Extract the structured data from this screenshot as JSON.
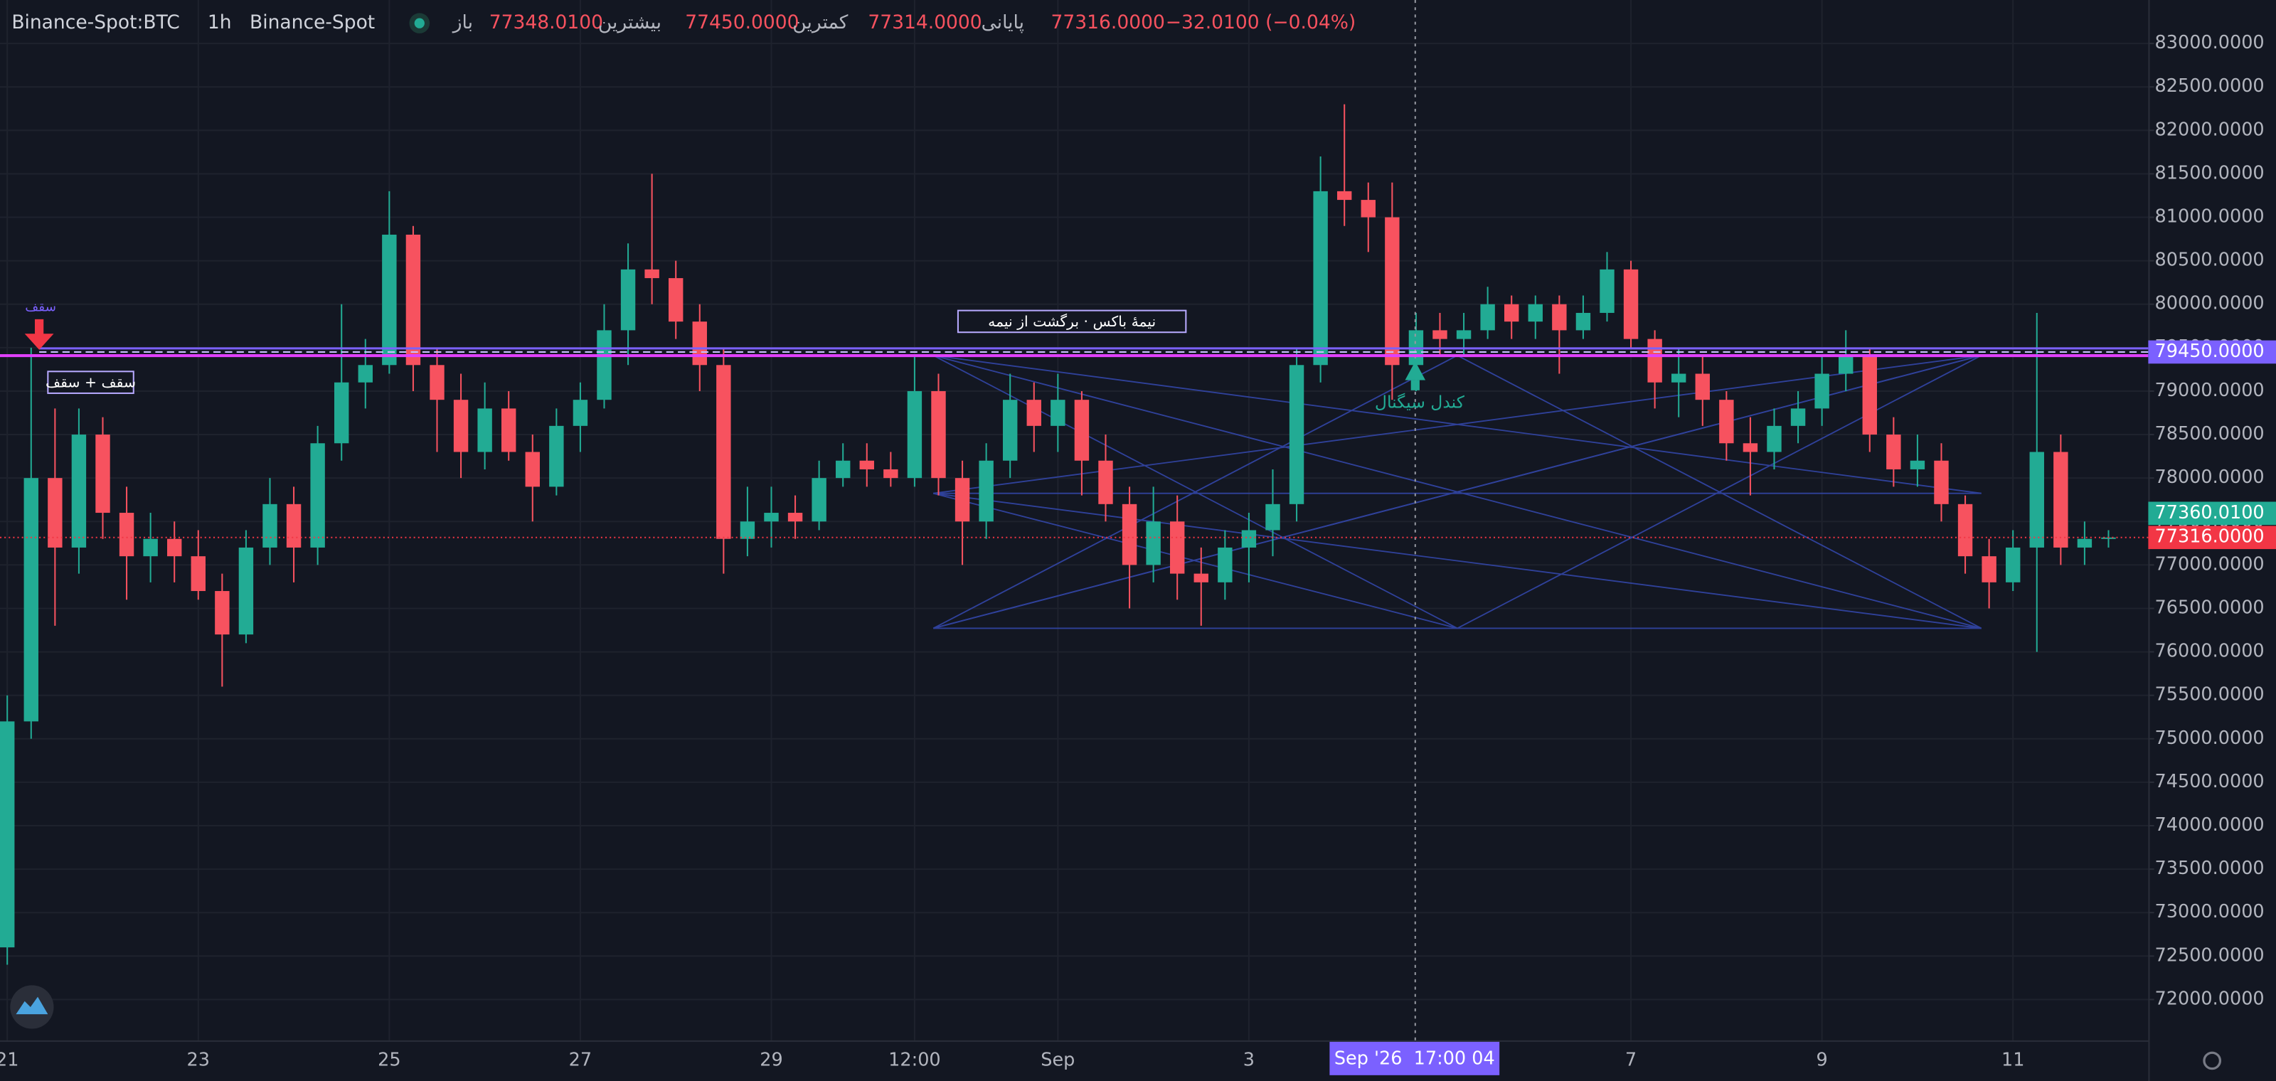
{
  "header": {
    "symbol": "Binance-Spot:BTC",
    "interval": "1h",
    "exchange": "Binance-Spot",
    "ohlc": [
      {
        "label": "باز",
        "value": "77348.0100"
      },
      {
        "label": "بیشترین",
        "value": "77450.0000"
      },
      {
        "label": "کمترین",
        "value": "77314.0000"
      },
      {
        "label": "پایانی",
        "value": "77316.0000"
      }
    ],
    "change": "−32.0100 (−0.04%)"
  },
  "chart_data": {
    "type": "candlestick",
    "up_color": "#22ab94",
    "down_color": "#f7525f",
    "grid": true,
    "categories": [
      "21",
      null,
      null,
      null,
      null,
      null,
      null,
      null,
      "23",
      null,
      null,
      null,
      null,
      null,
      null,
      null,
      "25",
      null,
      null,
      null,
      null,
      null,
      null,
      null,
      "27",
      null,
      null,
      null,
      null,
      null,
      null,
      null,
      "29",
      null,
      null,
      null,
      null,
      null,
      "12:00",
      null,
      null,
      null,
      null,
      null,
      "Sep",
      null,
      null,
      null,
      null,
      null,
      null,
      null,
      "3",
      null,
      null,
      null,
      null,
      null,
      null,
      null,
      null,
      null,
      null,
      null,
      null,
      null,
      null,
      null,
      "7",
      null,
      null,
      null,
      null,
      null,
      null,
      null,
      "9",
      null,
      null,
      null,
      null,
      null,
      null,
      null,
      "11",
      null,
      null,
      null,
      null
    ],
    "open": [
      72600,
      75200,
      78000,
      77200,
      78500,
      77600,
      77100,
      77300,
      77100,
      76700,
      76200,
      77200,
      77700,
      77200,
      78400,
      79100,
      79300,
      80800,
      79300,
      78900,
      78300,
      78800,
      78300,
      77900,
      78600,
      78900,
      79700,
      80400,
      80300,
      79800,
      79300,
      77300,
      77500,
      77600,
      77500,
      78000,
      78200,
      78100,
      78000,
      79000,
      78000,
      77500,
      78200,
      78900,
      78600,
      78900,
      78200,
      77700,
      77000,
      77500,
      76900,
      76800,
      77200,
      77400,
      77700,
      79300,
      81300,
      81200,
      81000,
      79300,
      79700,
      79600,
      79700,
      80000,
      79800,
      80000,
      79700,
      79900,
      80400,
      79600,
      79100,
      79200,
      78900,
      78400,
      78300,
      78600,
      78800,
      79200,
      79400,
      78500,
      78100,
      78200,
      77700,
      77100,
      76800,
      77200,
      78300,
      77200,
      77300
    ],
    "high": [
      75500,
      79500,
      78800,
      78800,
      78700,
      77900,
      77600,
      77500,
      77400,
      76900,
      77400,
      78000,
      77900,
      78600,
      80000,
      79600,
      81300,
      80900,
      79500,
      79200,
      79100,
      79000,
      78500,
      78800,
      79100,
      80000,
      80700,
      81500,
      80500,
      80000,
      79500,
      77900,
      77900,
      77800,
      78200,
      78400,
      78400,
      78300,
      79400,
      79200,
      78200,
      78400,
      79200,
      79100,
      79200,
      79000,
      78500,
      77900,
      77900,
      77800,
      77200,
      77400,
      77600,
      78100,
      79500,
      81700,
      82300,
      81400,
      81400,
      79900,
      79900,
      79900,
      80200,
      80100,
      80100,
      80100,
      80100,
      80600,
      80500,
      79700,
      79500,
      79400,
      79000,
      78700,
      78800,
      79000,
      79400,
      79700,
      79500,
      78700,
      78500,
      78400,
      77800,
      77300,
      77400,
      79900,
      78500,
      77500,
      77400
    ],
    "low": [
      72400,
      75000,
      76300,
      76900,
      77300,
      76600,
      76800,
      76800,
      76600,
      75600,
      76100,
      77000,
      76800,
      77000,
      78200,
      78800,
      79200,
      79000,
      78300,
      78000,
      78100,
      78200,
      77500,
      77800,
      78300,
      78800,
      79300,
      80000,
      79600,
      79000,
      76900,
      77100,
      77200,
      77300,
      77400,
      77900,
      77900,
      77900,
      77900,
      77800,
      77000,
      77300,
      78000,
      78300,
      78300,
      77800,
      77500,
      76500,
      76800,
      76600,
      76300,
      76600,
      76800,
      77100,
      77500,
      79100,
      80900,
      80600,
      78900,
      79000,
      79400,
      79400,
      79600,
      79600,
      79600,
      79200,
      79600,
      79800,
      79500,
      78800,
      78700,
      78600,
      78200,
      77800,
      78100,
      78400,
      78600,
      79000,
      78300,
      77900,
      77900,
      77500,
      76900,
      76500,
      76700,
      76000,
      77000,
      77000,
      77200
    ],
    "close": [
      75200,
      78000,
      77200,
      78500,
      77600,
      77100,
      77300,
      77100,
      76700,
      76200,
      77200,
      77700,
      77200,
      78400,
      79100,
      79300,
      80800,
      79300,
      78900,
      78300,
      78800,
      78300,
      77900,
      78600,
      78900,
      79700,
      80400,
      80300,
      79800,
      79300,
      77300,
      77500,
      77600,
      77500,
      78000,
      78200,
      78100,
      78000,
      79000,
      78000,
      77500,
      78200,
      78900,
      78600,
      78900,
      78200,
      77700,
      77000,
      77500,
      76900,
      76800,
      77200,
      77400,
      77700,
      79300,
      81300,
      81200,
      81000,
      79300,
      79700,
      79600,
      79700,
      80000,
      79800,
      80000,
      79700,
      79900,
      80400,
      79600,
      79100,
      79200,
      78900,
      78400,
      78300,
      78600,
      78800,
      79200,
      79400,
      78500,
      78100,
      78200,
      77700,
      77100,
      76800,
      77200,
      78300,
      77200,
      77300,
      77316
    ],
    "ylim": [
      71530,
      83500
    ],
    "yticks": [
      {
        "value": 72000,
        "label": "72000.0000"
      },
      {
        "value": 72500,
        "label": "72500.0000"
      },
      {
        "value": 73000,
        "label": "73000.0000"
      },
      {
        "value": 73500,
        "label": "73500.0000"
      },
      {
        "value": 74000,
        "label": "74000.0000"
      },
      {
        "value": 74500,
        "label": "74500.0000"
      },
      {
        "value": 75000,
        "label": "75000.0000"
      },
      {
        "value": 75500,
        "label": "75500.0000"
      },
      {
        "value": 76000,
        "label": "76000.0000"
      },
      {
        "value": 76500,
        "label": "76500.0000"
      },
      {
        "value": 77000,
        "label": "77000.0000"
      },
      {
        "value": 77500,
        "label": "77500.0000"
      },
      {
        "value": 78000,
        "label": "78000.0000"
      },
      {
        "value": 78500,
        "label": "78500.0000"
      },
      {
        "value": 79000,
        "label": "79000.0000"
      },
      {
        "value": 79500,
        "label": "79500.0000"
      },
      {
        "value": 80000,
        "label": "80000.0000"
      },
      {
        "value": 80500,
        "label": "80500.0000"
      },
      {
        "value": 81000,
        "label": "81000.0000"
      },
      {
        "value": 81500,
        "label": "81500.0000"
      },
      {
        "value": 82000,
        "label": "82000.0000"
      },
      {
        "value": 82500,
        "label": "82500.0000"
      },
      {
        "value": 83000,
        "label": "83000.0000"
      }
    ],
    "price_lines": [
      {
        "value": 79450,
        "label": "79450.0000",
        "color": "#7b61ff"
      },
      {
        "value": 77360.01,
        "label": "77360.0100",
        "color": "#22ab94"
      },
      {
        "value": 77316,
        "label": "77316.0000",
        "color": "#f23645"
      }
    ],
    "annotations": [
      "سقف",
      "سقف + سقف",
      "نیمهٔ باکس · برگشت از نیمه",
      "کندل سیگنال"
    ],
    "crosshair_label": "Sep '26  17:00 04"
  }
}
